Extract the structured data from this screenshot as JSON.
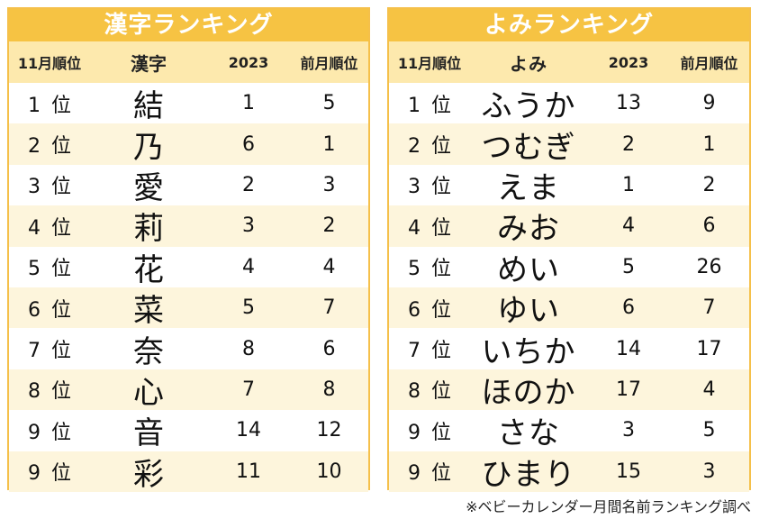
{
  "kanji": {
    "title": "漢字ランキング",
    "headers": [
      "11月順位",
      "漢字",
      "2023",
      "前月順位"
    ],
    "rows": [
      {
        "rank": "1",
        "unit": "位",
        "name": "結",
        "y2023": "1",
        "prev": "5"
      },
      {
        "rank": "2",
        "unit": "位",
        "name": "乃",
        "y2023": "6",
        "prev": "1"
      },
      {
        "rank": "3",
        "unit": "位",
        "name": "愛",
        "y2023": "2",
        "prev": "3"
      },
      {
        "rank": "4",
        "unit": "位",
        "name": "莉",
        "y2023": "3",
        "prev": "2"
      },
      {
        "rank": "5",
        "unit": "位",
        "name": "花",
        "y2023": "4",
        "prev": "4"
      },
      {
        "rank": "6",
        "unit": "位",
        "name": "菜",
        "y2023": "5",
        "prev": "7"
      },
      {
        "rank": "7",
        "unit": "位",
        "name": "奈",
        "y2023": "8",
        "prev": "6"
      },
      {
        "rank": "8",
        "unit": "位",
        "name": "心",
        "y2023": "7",
        "prev": "8"
      },
      {
        "rank": "9",
        "unit": "位",
        "name": "音",
        "y2023": "14",
        "prev": "12"
      },
      {
        "rank": "9",
        "unit": "位",
        "name": "彩",
        "y2023": "11",
        "prev": "10"
      }
    ]
  },
  "yomi": {
    "title": "よみランキング",
    "headers": [
      "11月順位",
      "よみ",
      "2023",
      "前月順位"
    ],
    "rows": [
      {
        "rank": "1",
        "unit": "位",
        "name": "ふうか",
        "y2023": "13",
        "prev": "9"
      },
      {
        "rank": "2",
        "unit": "位",
        "name": "つむぎ",
        "y2023": "2",
        "prev": "1"
      },
      {
        "rank": "3",
        "unit": "位",
        "name": "えま",
        "y2023": "1",
        "prev": "2"
      },
      {
        "rank": "4",
        "unit": "位",
        "name": "みお",
        "y2023": "4",
        "prev": "6"
      },
      {
        "rank": "5",
        "unit": "位",
        "name": "めい",
        "y2023": "5",
        "prev": "26"
      },
      {
        "rank": "6",
        "unit": "位",
        "name": "ゆい",
        "y2023": "6",
        "prev": "7"
      },
      {
        "rank": "7",
        "unit": "位",
        "name": "いちか",
        "y2023": "14",
        "prev": "17"
      },
      {
        "rank": "8",
        "unit": "位",
        "name": "ほのか",
        "y2023": "17",
        "prev": "4"
      },
      {
        "rank": "9",
        "unit": "位",
        "name": "さな",
        "y2023": "3",
        "prev": "5"
      },
      {
        "rank": "9",
        "unit": "位",
        "name": "ひまり",
        "y2023": "15",
        "prev": "3"
      }
    ]
  },
  "footer": "※ベビーカレンダー月間名前ランキング調べ",
  "colors": {
    "title_bg": "#f6c343",
    "header_bg": "#fde9ad",
    "stripe_bg": "#fdf5dc",
    "border": "#f5c04a"
  }
}
